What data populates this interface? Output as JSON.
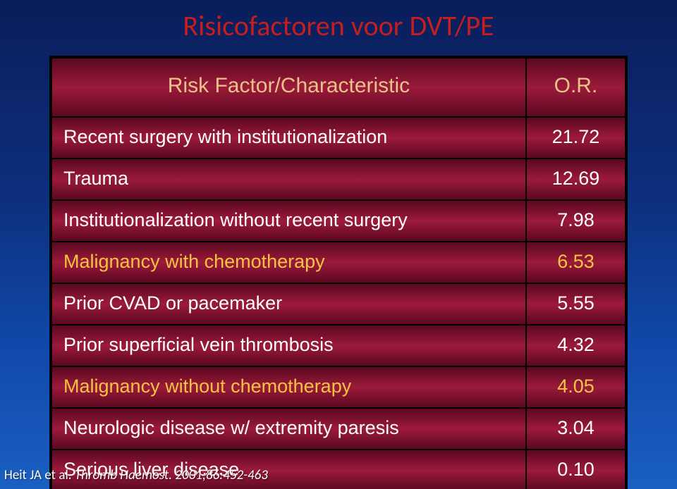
{
  "title": "Risicofactoren voor DVT/PE",
  "header": {
    "col1": "Risk Factor/Characteristic",
    "col2": "O.R."
  },
  "rows": [
    {
      "label": "Recent surgery with institutionalization",
      "value": "21.72",
      "highlight": false
    },
    {
      "label": "Trauma",
      "value": "12.69",
      "highlight": false
    },
    {
      "label": "Institutionalization without recent surgery",
      "value": "7.98",
      "highlight": false
    },
    {
      "label": "Malignancy with chemotherapy",
      "value": "6.53",
      "highlight": true
    },
    {
      "label": "Prior CVAD or pacemaker",
      "value": "5.55",
      "highlight": false
    },
    {
      "label": "Prior superficial vein thrombosis",
      "value": "4.32",
      "highlight": false
    },
    {
      "label": "Malignancy without chemotherapy",
      "value": "4.05",
      "highlight": true
    },
    {
      "label": "Neurologic disease w/ extremity paresis",
      "value": "3.04",
      "highlight": false
    },
    {
      "label": "Serious liver disease",
      "value": "0.10",
      "highlight": false
    }
  ],
  "citation": {
    "author": "Heit JA et al.",
    "journal": "Thromb Haemost.",
    "ref": "2001;86:452-463"
  },
  "colors": {
    "title": "#c41e1e",
    "header_text": "#e8c38a",
    "row_text": "#ffffff",
    "highlight_text": "#f4c542",
    "row_gradient_dark": "#5a0820",
    "row_gradient_light": "#9c1a3a",
    "bg_top": "#0a1d5a",
    "bg_bottom": "#1a5fc2",
    "border": "#000000"
  },
  "fonts": {
    "title_size_pt": 30,
    "header_size_pt": 22,
    "row_size_pt": 20,
    "citation_size_pt": 14
  }
}
